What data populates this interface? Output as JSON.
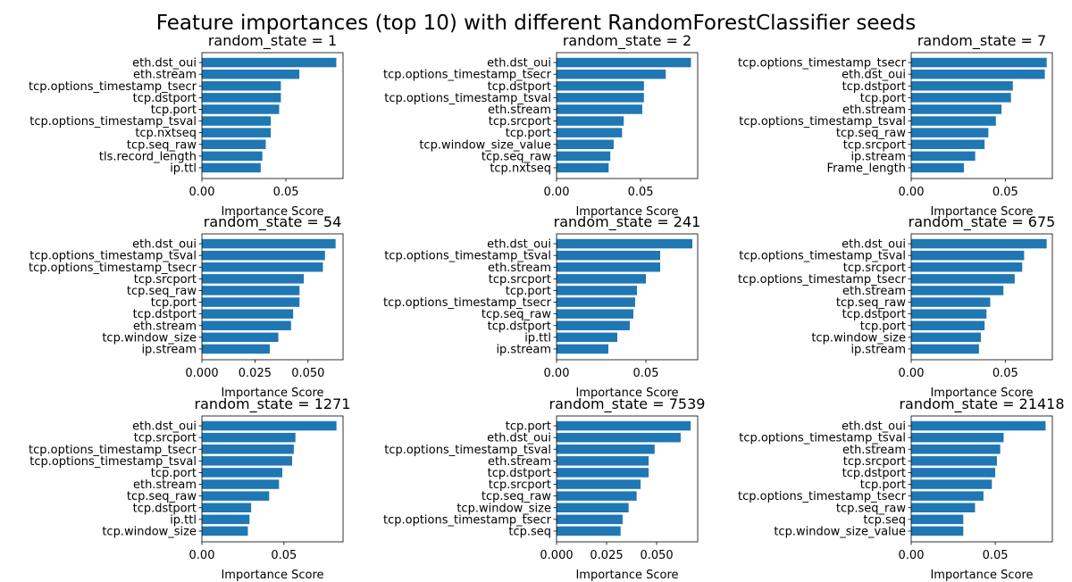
{
  "title": "Feature importances (top 10) with different RandomForestClassifier seeds",
  "colors": {
    "bar": "#1f77b4",
    "axis": "#000000",
    "background": "#ffffff"
  },
  "chart_data": [
    {
      "type": "bar",
      "orientation": "horizontal",
      "title": "random_state = 1",
      "xlabel": "Importance Score",
      "ylabel": "",
      "xlim": [
        0,
        0.084
      ],
      "xticks": [
        "0.00",
        "0.05"
      ],
      "grid": false,
      "categories": [
        "eth.dst_oui",
        "eth.stream",
        "tcp.options_timestamp_tsecr",
        "tcp.dstport",
        "tcp.port",
        "tcp.options_timestamp_tsval",
        "tcp.nxtseq",
        "tcp.seq_raw",
        "tls.record_length",
        "ip.ttl"
      ],
      "values": [
        0.08,
        0.058,
        0.047,
        0.047,
        0.046,
        0.041,
        0.041,
        0.038,
        0.036,
        0.035
      ]
    },
    {
      "type": "bar",
      "orientation": "horizontal",
      "title": "random_state = 2",
      "xlabel": "Importance Score",
      "ylabel": "",
      "xlim": [
        0,
        0.084
      ],
      "xticks": [
        "0.00",
        "0.05"
      ],
      "grid": false,
      "categories": [
        "eth.dst_oui",
        "tcp.options_timestamp_tsecr",
        "tcp.dstport",
        "tcp.options_timestamp_tsval",
        "eth.stream",
        "tcp.srcport",
        "tcp.port",
        "tcp.window_size_value",
        "tcp.seq_raw",
        "tcp.nxtseq"
      ],
      "values": [
        0.08,
        0.065,
        0.052,
        0.052,
        0.051,
        0.04,
        0.039,
        0.034,
        0.032,
        0.031
      ]
    },
    {
      "type": "bar",
      "orientation": "horizontal",
      "title": "random_state = 7",
      "xlabel": "Importance Score",
      "ylabel": "",
      "xlim": [
        0,
        0.075
      ],
      "xticks": [
        "0.00",
        "0.05"
      ],
      "grid": false,
      "categories": [
        "tcp.options_timestamp_tsecr",
        "eth.dst_oui",
        "tcp.dstport",
        "tcp.port",
        "eth.stream",
        "tcp.options_timestamp_tsval",
        "tcp.seq_raw",
        "tcp.srcport",
        "ip.stream",
        "Frame_length"
      ],
      "values": [
        0.072,
        0.071,
        0.054,
        0.053,
        0.048,
        0.045,
        0.041,
        0.039,
        0.034,
        0.028
      ]
    },
    {
      "type": "bar",
      "orientation": "horizontal",
      "title": "random_state = 54",
      "xlabel": "Importance Score",
      "ylabel": "",
      "xlim": [
        0,
        0.0665
      ],
      "xticks": [
        "0.000",
        "0.025",
        "0.050"
      ],
      "grid": false,
      "categories": [
        "eth.dst_oui",
        "tcp.options_timestamp_tsval",
        "tcp.options_timestamp_tsecr",
        "tcp.srcport",
        "tcp.seq_raw",
        "tcp.port",
        "tcp.dstport",
        "eth.stream",
        "tcp.window_size",
        "ip.stream"
      ],
      "values": [
        0.063,
        0.058,
        0.057,
        0.048,
        0.046,
        0.046,
        0.043,
        0.042,
        0.036,
        0.032
      ]
    },
    {
      "type": "bar",
      "orientation": "horizontal",
      "title": "random_state = 241",
      "xlabel": "Importance Score",
      "ylabel": "",
      "xlim": [
        0,
        0.079
      ],
      "xticks": [
        "0.00",
        "0.05"
      ],
      "grid": false,
      "categories": [
        "eth.dst_oui",
        "tcp.options_timestamp_tsval",
        "eth.stream",
        "tcp.srcport",
        "tcp.port",
        "tcp.options_timestamp_tsecr",
        "tcp.seq_raw",
        "tcp.dstport",
        "ip.ttl",
        "ip.stream"
      ],
      "values": [
        0.076,
        0.058,
        0.058,
        0.05,
        0.045,
        0.044,
        0.043,
        0.041,
        0.034,
        0.029
      ]
    },
    {
      "type": "bar",
      "orientation": "horizontal",
      "title": "random_state = 675",
      "xlabel": "Importance Score",
      "ylabel": "",
      "xlim": [
        0,
        0.075
      ],
      "xticks": [
        "0.00",
        "0.05"
      ],
      "grid": false,
      "categories": [
        "eth.dst_oui",
        "tcp.options_timestamp_tsval",
        "tcp.srcport",
        "tcp.options_timestamp_tsecr",
        "eth.stream",
        "tcp.seq_raw",
        "tcp.dstport",
        "tcp.port",
        "tcp.window_size",
        "ip.stream"
      ],
      "values": [
        0.072,
        0.06,
        0.059,
        0.055,
        0.049,
        0.042,
        0.04,
        0.039,
        0.037,
        0.036
      ]
    },
    {
      "type": "bar",
      "orientation": "horizontal",
      "title": "random_state = 1271",
      "xlabel": "Importance Score",
      "ylabel": "",
      "xlim": [
        0,
        0.086
      ],
      "xticks": [
        "0.00",
        "0.05"
      ],
      "grid": false,
      "categories": [
        "eth.dst_oui",
        "tcp.srcport",
        "tcp.options_timestamp_tsecr",
        "tcp.options_timestamp_tsval",
        "tcp.port",
        "eth.stream",
        "tcp.seq_raw",
        "tcp.dstport",
        "ip.ttl",
        "tcp.window_size"
      ],
      "values": [
        0.082,
        0.057,
        0.056,
        0.055,
        0.049,
        0.047,
        0.041,
        0.03,
        0.029,
        0.028
      ]
    },
    {
      "type": "bar",
      "orientation": "horizontal",
      "title": "random_state = 7539",
      "xlabel": "Importance Score",
      "ylabel": "",
      "xlim": [
        0,
        0.0705
      ],
      "xticks": [
        "0.000",
        "0.025",
        "0.050"
      ],
      "grid": false,
      "categories": [
        "tcp.port",
        "eth.dst_oui",
        "tcp.options_timestamp_tsval",
        "eth.stream",
        "tcp.dstport",
        "tcp.srcport",
        "tcp.seq_raw",
        "tcp.window_size",
        "tcp.options_timestamp_tsecr",
        "tcp.seq"
      ],
      "values": [
        0.067,
        0.062,
        0.049,
        0.046,
        0.046,
        0.042,
        0.04,
        0.036,
        0.033,
        0.032
      ]
    },
    {
      "type": "bar",
      "orientation": "horizontal",
      "title": "random_state = 21418",
      "xlabel": "Importance Score",
      "ylabel": "",
      "xlim": [
        0,
        0.084
      ],
      "xticks": [
        "0.00",
        "0.05"
      ],
      "grid": false,
      "categories": [
        "eth.dst_oui",
        "tcp.options_timestamp_tsval",
        "eth.stream",
        "tcp.srcport",
        "tcp.dstport",
        "tcp.port",
        "tcp.options_timestamp_tsecr",
        "tcp.seq_raw",
        "tcp.seq",
        "tcp.window_size_value"
      ],
      "values": [
        0.08,
        0.055,
        0.053,
        0.051,
        0.05,
        0.048,
        0.043,
        0.038,
        0.031,
        0.031
      ]
    }
  ]
}
